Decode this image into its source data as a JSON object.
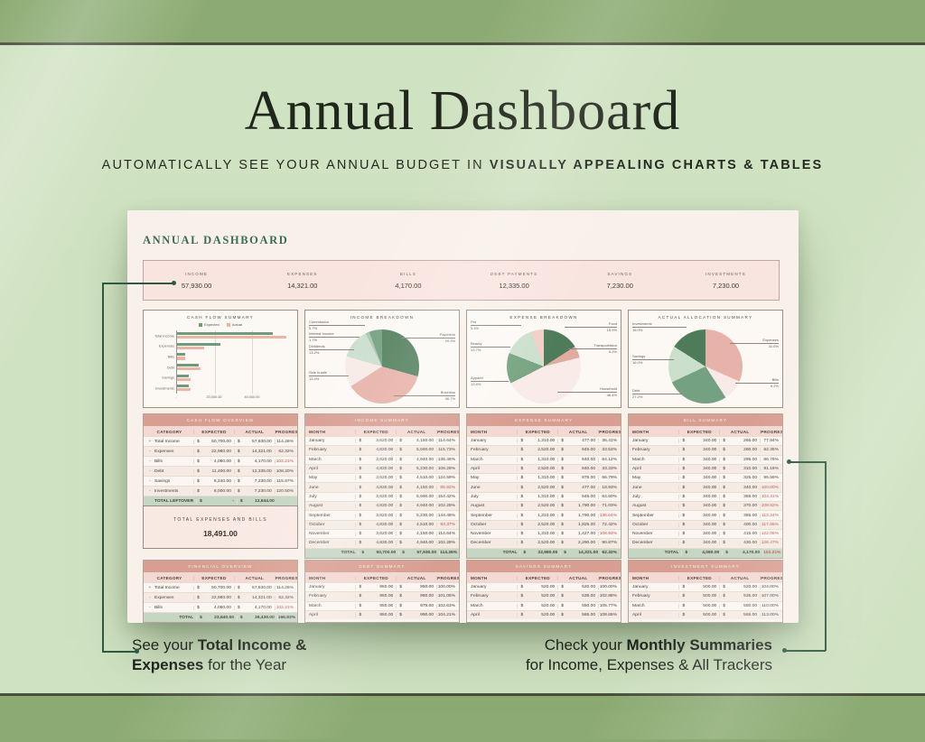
{
  "currency": "$",
  "page": {
    "title": "Annual Dashboard",
    "subtitle_lines": [
      [
        {
          "t": "AUTOMATICALLY SEE YOUR ANNUAL BUDGET IN ",
          "b": false
        },
        {
          "t": "VISUALLY APPEALING CHARTS & TABLES",
          "b": true
        }
      ]
    ]
  },
  "dashboard": {
    "heading": "ANNUAL DASHBOARD",
    "kpis": [
      {
        "label": "INCOME",
        "value": "57,930.00"
      },
      {
        "label": "EXPENSES",
        "value": "14,321.00"
      },
      {
        "label": "BILLS",
        "value": "4,170.00"
      },
      {
        "label": "DEBT PAYMENTS",
        "value": "12,335.00"
      },
      {
        "label": "SAVINGS",
        "value": "7,230.00"
      },
      {
        "label": "INVESTMENTS",
        "value": "7,230.00"
      }
    ]
  },
  "chart_data": [
    {
      "type": "bar",
      "title": "CASH FLOW SUMMARY",
      "orientation": "horizontal",
      "categories": [
        "Total Income",
        "Expenses",
        "Bills",
        "Debt",
        "Savings",
        "Investments"
      ],
      "series": [
        {
          "name": "Expected",
          "color": "#6b9e78",
          "values": [
            50700,
            22980,
            4080,
            11400,
            6240,
            6000
          ]
        },
        {
          "name": "Actual",
          "color": "#efb3a6",
          "values": [
            57930,
            14321,
            4170,
            12335,
            7230,
            7230
          ]
        }
      ],
      "xlim": [
        0,
        60000
      ],
      "xticks": [
        "-",
        "20,000.00",
        "40,000.00"
      ],
      "legend_position": "top",
      "grid": true
    },
    {
      "type": "pie",
      "title": "INCOME BREAKDOWN",
      "slices": [
        {
          "label": "Paycheck",
          "pct": 29.3,
          "pct_label": "29.3%",
          "color": "#54815f"
        },
        {
          "label": "Business",
          "pct": 36.7,
          "pct_label": "36.7%",
          "color": "#e7b2a9"
        },
        {
          "label": "Side hustle",
          "pct": 13.4,
          "pct_label": "13.4%",
          "color": "#f8ebe7"
        },
        {
          "label": "Dividends",
          "pct": 13.2,
          "pct_label": "13.2%",
          "color": "#cbdfcd"
        },
        {
          "label": "Interest Income",
          "pct": 1.7,
          "pct_label": "1.7%",
          "color": "#a9c6af"
        },
        {
          "label": "Commission",
          "pct": 5.7,
          "pct_label": "5.7%",
          "color": "#74a181"
        }
      ]
    },
    {
      "type": "pie",
      "title": "EXPENSE BREAKDOWN",
      "slices": [
        {
          "label": "Food",
          "pct": 15.9,
          "pct_label": "15.9%",
          "color": "#4e7c5b"
        },
        {
          "label": "Transportation",
          "pct": 5.2,
          "pct_label": "5.2%",
          "color": "#e2aba1"
        },
        {
          "label": "Household",
          "pct": 46.4,
          "pct_label": "46.4%",
          "color": "#f9ece8"
        },
        {
          "label": "Apparel",
          "pct": 13.4,
          "pct_label": "13.4%",
          "color": "#78a584"
        },
        {
          "label": "Beauty",
          "pct": 13.7,
          "pct_label": "13.7%",
          "color": "#cde0cf"
        },
        {
          "label": "Pet",
          "pct": 5.4,
          "pct_label": "5.4%",
          "color": "#f3cfc8"
        }
      ]
    },
    {
      "type": "pie",
      "title": "ACTUAL ALLOCATION SUMMARY",
      "slices": [
        {
          "label": "Expenses",
          "pct": 31.6,
          "pct_label": "31.6%",
          "color": "#e7b2a9"
        },
        {
          "label": "Bills",
          "pct": 9.2,
          "pct_label": "9.2%",
          "color": "#f8ebe7"
        },
        {
          "label": "Debt",
          "pct": 27.2,
          "pct_label": "27.2%",
          "color": "#74a181"
        },
        {
          "label": "Savings",
          "pct": 16.0,
          "pct_label": "16.0%",
          "color": "#cbdfcd"
        },
        {
          "label": "Investments",
          "pct": 16.0,
          "pct_label": "16.0%",
          "color": "#4e7c5b"
        }
      ]
    }
  ],
  "tables": {
    "cash_flow_overview": {
      "title": "CASH FLOW OVERVIEW",
      "columns": [
        "CATEGORY",
        "EXPECTED",
        "ACTUAL",
        "PROGRESS"
      ],
      "rows": [
        [
          "+",
          "Total Income",
          "50,700.00",
          "57,930.00",
          "114.26%",
          false
        ],
        [
          "-",
          "Expenses",
          "22,980.00",
          "14,321.00",
          "62.32%",
          false
        ],
        [
          "-",
          "Bills",
          "4,080.00",
          "4,170.00",
          "102.21%",
          true
        ],
        [
          "-",
          "Debt",
          "11,400.00",
          "12,335.00",
          "108.20%",
          false
        ],
        [
          "-",
          "Savings",
          "6,240.00",
          "7,230.00",
          "115.87%",
          false
        ],
        [
          "-",
          "Investments",
          "6,000.00",
          "7,230.00",
          "120.50%",
          false
        ]
      ],
      "total": [
        "TOTAL LEFTOVER",
        "-",
        "12,644.00",
        "",
        false
      ]
    },
    "financial_overview": {
      "title": "FINANCIAL OVERVIEW",
      "columns": [
        "CATEGORY",
        "EXPECTED",
        "ACTUAL",
        "PROGRESS"
      ],
      "rows": [
        [
          "+",
          "Total Income",
          "50,700.00",
          "57,930.00",
          "114.26%",
          false
        ],
        [
          "-",
          "Expenses",
          "22,980.00",
          "14,321.00",
          "62.32%",
          false
        ],
        [
          "-",
          "Bills",
          "4,080.00",
          "4,170.00",
          "102.21%",
          true
        ]
      ],
      "total": [
        "TOTAL",
        "23,640.00",
        "39,439.00",
        "166.83%",
        false
      ]
    },
    "income_summary": {
      "title": "INCOME SUMMARY",
      "columns": [
        "MONTH",
        "EXPECTED",
        "ACTUAL",
        "PROGRESS"
      ],
      "rows": [
        [
          "January",
          "3,620.00",
          "4,150.00",
          "114.64%",
          false
        ],
        [
          "February",
          "4,830.00",
          "5,590.00",
          "115.73%",
          false
        ],
        [
          "March",
          "3,620.00",
          "4,940.00",
          "136.46%",
          false
        ],
        [
          "April",
          "4,830.00",
          "5,230.00",
          "108.28%",
          false
        ],
        [
          "May",
          "3,620.00",
          "4,510.00",
          "124.59%",
          false
        ],
        [
          "June",
          "4,830.00",
          "4,150.00",
          "85.92%",
          true
        ],
        [
          "July",
          "3,620.00",
          "5,590.00",
          "154.42%",
          false
        ],
        [
          "August",
          "4,830.00",
          "4,940.00",
          "102.28%",
          false
        ],
        [
          "September",
          "3,620.00",
          "5,230.00",
          "144.48%",
          false
        ],
        [
          "October",
          "4,830.00",
          "4,510.00",
          "93.37%",
          true
        ],
        [
          "November",
          "3,620.00",
          "4,150.00",
          "114.64%",
          false
        ],
        [
          "December",
          "4,830.00",
          "4,940.00",
          "102.28%",
          false
        ]
      ],
      "total": [
        "TOTAL",
        "50,700.00",
        "57,930.00",
        "114.26%",
        false
      ]
    },
    "expense_summary": {
      "title": "EXPENSE SUMMARY",
      "columns": [
        "MONTH",
        "EXPECTED",
        "ACTUAL",
        "PROGRESS"
      ],
      "rows": [
        [
          "January",
          "1,310.00",
          "477.00",
          "36.41%",
          false
        ],
        [
          "February",
          "2,520.00",
          "845.00",
          "33.53%",
          false
        ],
        [
          "March",
          "1,310.00",
          "840.00",
          "64.12%",
          false
        ],
        [
          "April",
          "2,520.00",
          "840.00",
          "33.33%",
          false
        ],
        [
          "May",
          "1,310.00",
          "875.00",
          "66.79%",
          false
        ],
        [
          "June",
          "2,520.00",
          "477.00",
          "18.93%",
          false
        ],
        [
          "July",
          "1,310.00",
          "845.00",
          "64.50%",
          false
        ],
        [
          "August",
          "2,520.00",
          "1,790.00",
          "71.03%",
          false
        ],
        [
          "September",
          "1,310.00",
          "1,790.00",
          "136.64%",
          true
        ],
        [
          "October",
          "2,520.00",
          "1,825.00",
          "72.42%",
          false
        ],
        [
          "November",
          "1,310.00",
          "1,427.00",
          "108.93%",
          true
        ],
        [
          "December",
          "2,520.00",
          "2,290.00",
          "90.87%",
          false
        ]
      ],
      "total": [
        "TOTAL",
        "22,980.00",
        "14,321.00",
        "62.32%",
        false
      ]
    },
    "bill_summary": {
      "title": "BILL SUMMARY",
      "columns": [
        "MONTH",
        "EXPECTED",
        "ACTUAL",
        "PROGRESS"
      ],
      "rows": [
        [
          "January",
          "340.00",
          "265.00",
          "77.94%",
          false
        ],
        [
          "February",
          "340.00",
          "280.00",
          "82.35%",
          false
        ],
        [
          "March",
          "340.00",
          "295.00",
          "86.76%",
          false
        ],
        [
          "April",
          "340.00",
          "310.00",
          "91.18%",
          false
        ],
        [
          "May",
          "340.00",
          "325.00",
          "95.59%",
          false
        ],
        [
          "June",
          "340.00",
          "340.00",
          "100.00%",
          true
        ],
        [
          "July",
          "340.00",
          "355.00",
          "104.41%",
          true
        ],
        [
          "August",
          "340.00",
          "370.00",
          "108.82%",
          true
        ],
        [
          "September",
          "340.00",
          "385.00",
          "113.24%",
          true
        ],
        [
          "October",
          "340.00",
          "400.00",
          "117.65%",
          true
        ],
        [
          "November",
          "340.00",
          "415.00",
          "122.06%",
          true
        ],
        [
          "December",
          "340.00",
          "430.00",
          "126.47%",
          true
        ]
      ],
      "total": [
        "TOTAL",
        "4,080.00",
        "4,170.00",
        "102.21%",
        true
      ]
    },
    "debt_summary": {
      "title": "DEBT SUMMARY",
      "columns": [
        "MONTH",
        "EXPECTED",
        "ACTUAL",
        "PROGRESS"
      ],
      "rows": [
        [
          "January",
          "950.00",
          "950.00",
          "100.00%",
          false
        ],
        [
          "February",
          "950.00",
          "960.00",
          "101.05%",
          false
        ],
        [
          "March",
          "950.00",
          "975.00",
          "102.63%",
          false
        ],
        [
          "April",
          "950.00",
          "990.00",
          "104.21%",
          false
        ]
      ]
    },
    "savings_summary": {
      "title": "SAVINGS SUMMARY",
      "columns": [
        "MONTH",
        "EXPECTED",
        "ACTUAL",
        "PROGRESS"
      ],
      "rows": [
        [
          "January",
          "520.00",
          "520.00",
          "100.00%",
          false
        ],
        [
          "February",
          "520.00",
          "535.00",
          "102.88%",
          false
        ],
        [
          "March",
          "520.00",
          "550.00",
          "105.77%",
          false
        ],
        [
          "April",
          "520.00",
          "565.00",
          "108.65%",
          false
        ]
      ]
    },
    "investment_summary": {
      "title": "INVESTMENT SUMMARY",
      "columns": [
        "MONTH",
        "EXPECTED",
        "ACTUAL",
        "PROGRESS"
      ],
      "rows": [
        [
          "January",
          "500.00",
          "520.00",
          "104.00%",
          false
        ],
        [
          "February",
          "500.00",
          "535.00",
          "107.00%",
          false
        ],
        [
          "March",
          "500.00",
          "550.00",
          "110.00%",
          false
        ],
        [
          "April",
          "500.00",
          "565.00",
          "113.00%",
          false
        ]
      ]
    }
  },
  "total_box": {
    "title": "TOTAL EXPENSES AND BILLS",
    "value": "18,491.00"
  },
  "callouts": {
    "left_lines": [
      [
        {
          "t": "See your ",
          "b": false
        },
        {
          "t": "Total Income &",
          "b": true
        }
      ],
      [
        {
          "t": "Expenses",
          "b": true
        },
        {
          "t": " for the Year",
          "b": false
        }
      ]
    ],
    "right_lines": [
      [
        {
          "t": "Check your ",
          "b": false
        },
        {
          "t": "Monthly Summaries",
          "b": true
        }
      ],
      [
        {
          "t": "for Income, Expenses & All Trackers",
          "b": false
        }
      ]
    ]
  }
}
